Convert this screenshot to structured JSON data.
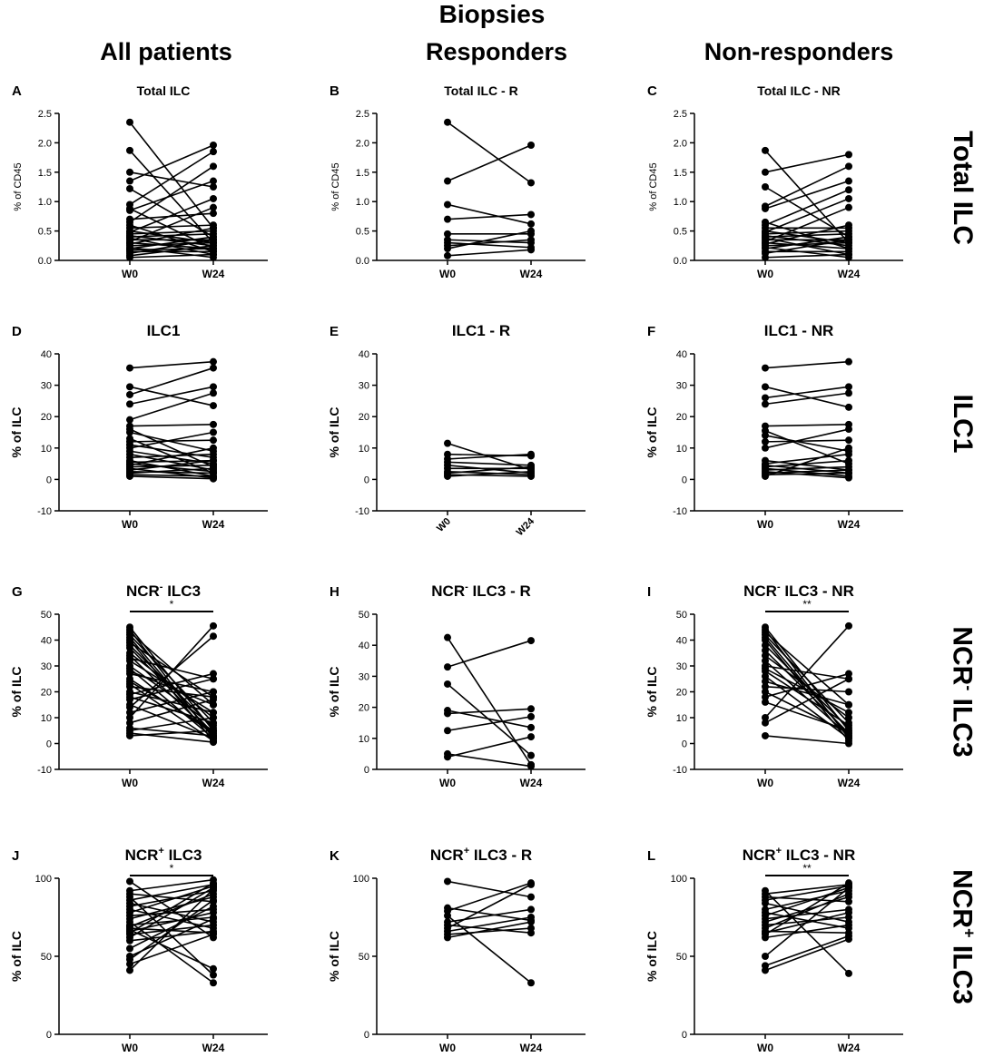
{
  "figure": {
    "title": "Biopsies",
    "columns": [
      "All patients",
      "Responders",
      "Non-responders"
    ],
    "rows": [
      {
        "main": "Total ILC",
        "sup": ""
      },
      {
        "main": "ILC1",
        "sup": ""
      },
      {
        "main": "NCR",
        "sup": "-",
        "suffix": " ILC3"
      },
      {
        "main": "NCR",
        "sup": "+",
        "suffix": " ILC3"
      }
    ]
  },
  "chart_data": [
    {
      "letter": "A",
      "type": "line",
      "title": "Total ILC",
      "ylabel": "% of CD45",
      "categories": [
        "W0",
        "W24"
      ],
      "ylim": [
        0,
        2.5
      ],
      "yticks": [
        "0.0",
        "0.5",
        "1.0",
        "1.5",
        "2.0",
        "2.5"
      ],
      "tickvals": [
        0,
        0.5,
        1,
        1.5,
        2,
        2.5
      ],
      "rotate_x": false,
      "sig": "",
      "pairs": [
        [
          2.35,
          0.55
        ],
        [
          1.87,
          0.3
        ],
        [
          1.5,
          1.25
        ],
        [
          1.35,
          1.96
        ],
        [
          1.22,
          0.4
        ],
        [
          0.95,
          1.85
        ],
        [
          0.88,
          0.2
        ],
        [
          0.85,
          1.35
        ],
        [
          0.7,
          0.8
        ],
        [
          0.65,
          1.6
        ],
        [
          0.6,
          0.15
        ],
        [
          0.55,
          0.6
        ],
        [
          0.5,
          0.3
        ],
        [
          0.48,
          1.05
        ],
        [
          0.45,
          0.5
        ],
        [
          0.42,
          0.25
        ],
        [
          0.4,
          0.45
        ],
        [
          0.38,
          0.1
        ],
        [
          0.35,
          0.35
        ],
        [
          0.32,
          0.9
        ],
        [
          0.3,
          0.2
        ],
        [
          0.28,
          0.55
        ],
        [
          0.25,
          0.3
        ],
        [
          0.22,
          0.05
        ],
        [
          0.2,
          0.4
        ],
        [
          0.18,
          0.2
        ],
        [
          0.15,
          0.15
        ],
        [
          0.12,
          0.35
        ],
        [
          0.08,
          0.25
        ],
        [
          0.05,
          0.1
        ]
      ]
    },
    {
      "letter": "B",
      "type": "line",
      "title": "Total ILC - R",
      "ylabel": "% of CD45",
      "categories": [
        "W0",
        "W24"
      ],
      "ylim": [
        0,
        2.5
      ],
      "yticks": [
        "0.0",
        "0.5",
        "1.0",
        "1.5",
        "2.0",
        "2.5"
      ],
      "tickvals": [
        0,
        0.5,
        1,
        1.5,
        2,
        2.5
      ],
      "rotate_x": false,
      "sig": "",
      "pairs": [
        [
          2.35,
          1.32
        ],
        [
          1.35,
          1.96
        ],
        [
          0.95,
          0.62
        ],
        [
          0.7,
          0.78
        ],
        [
          0.45,
          0.45
        ],
        [
          0.35,
          0.3
        ],
        [
          0.3,
          0.22
        ],
        [
          0.25,
          0.35
        ],
        [
          0.2,
          0.5
        ],
        [
          0.08,
          0.18
        ]
      ]
    },
    {
      "letter": "C",
      "type": "line",
      "title": "Total ILC - NR",
      "ylabel": "% of CD45",
      "categories": [
        "W0",
        "W24"
      ],
      "ylim": [
        0,
        2.5
      ],
      "yticks": [
        "0.0",
        "0.5",
        "1.0",
        "1.5",
        "2.0",
        "2.5"
      ],
      "tickvals": [
        0,
        0.5,
        1,
        1.5,
        2,
        2.5
      ],
      "rotate_x": false,
      "sig": "",
      "pairs": [
        [
          1.87,
          0.3
        ],
        [
          1.5,
          1.8
        ],
        [
          1.25,
          0.4
        ],
        [
          0.92,
          1.6
        ],
        [
          0.88,
          1.35
        ],
        [
          0.65,
          0.2
        ],
        [
          0.6,
          1.2
        ],
        [
          0.55,
          0.55
        ],
        [
          0.5,
          0.3
        ],
        [
          0.48,
          1.05
        ],
        [
          0.45,
          0.5
        ],
        [
          0.42,
          0.25
        ],
        [
          0.4,
          0.45
        ],
        [
          0.38,
          0.1
        ],
        [
          0.35,
          0.35
        ],
        [
          0.32,
          0.9
        ],
        [
          0.3,
          0.2
        ],
        [
          0.28,
          0.6
        ],
        [
          0.25,
          0.3
        ],
        [
          0.22,
          0.05
        ],
        [
          0.2,
          0.4
        ],
        [
          0.15,
          0.15
        ],
        [
          0.12,
          0.35
        ],
        [
          0.05,
          0.1
        ]
      ]
    },
    {
      "letter": "D",
      "type": "line",
      "title": "ILC1",
      "ylabel": "% of ILC",
      "categories": [
        "W0",
        "W24"
      ],
      "ylim": [
        -10,
        40
      ],
      "yticks": [
        "-10",
        "0",
        "10",
        "20",
        "30",
        "40"
      ],
      "tickvals": [
        -10,
        0,
        10,
        20,
        30,
        40
      ],
      "rotate_x": false,
      "sig": "",
      "pairs": [
        [
          35.5,
          37.5
        ],
        [
          29.5,
          23.5
        ],
        [
          27,
          35.5
        ],
        [
          24,
          29.5
        ],
        [
          19,
          27.5
        ],
        [
          17,
          17.5
        ],
        [
          16,
          4
        ],
        [
          15,
          9
        ],
        [
          13,
          2
        ],
        [
          12,
          12.5
        ],
        [
          11,
          7
        ],
        [
          10,
          15
        ],
        [
          9,
          5
        ],
        [
          8,
          3
        ],
        [
          7,
          8
        ],
        [
          6,
          1
        ],
        [
          5.5,
          6
        ],
        [
          5,
          2.5
        ],
        [
          4.5,
          10
        ],
        [
          4,
          4.5
        ],
        [
          3.5,
          0.5
        ],
        [
          3,
          6
        ],
        [
          2.5,
          2
        ],
        [
          2,
          3.5
        ],
        [
          1.5,
          1
        ],
        [
          1,
          0.2
        ]
      ]
    },
    {
      "letter": "E",
      "type": "line",
      "title": "ILC1 - R",
      "ylabel": "% of ILC",
      "categories": [
        "W0",
        "W24"
      ],
      "ylim": [
        -10,
        40
      ],
      "yticks": [
        "-10",
        "0",
        "10",
        "20",
        "30",
        "40"
      ],
      "tickvals": [
        -10,
        0,
        10,
        20,
        30,
        40
      ],
      "rotate_x": true,
      "sig": "",
      "pairs": [
        [
          11.5,
          3
        ],
        [
          8,
          7.5
        ],
        [
          6.5,
          8
        ],
        [
          5.5,
          4.5
        ],
        [
          4.5,
          2
        ],
        [
          3.5,
          3.5
        ],
        [
          2.5,
          1.5
        ],
        [
          2,
          4
        ],
        [
          1.5,
          1
        ],
        [
          1,
          2.5
        ]
      ]
    },
    {
      "letter": "F",
      "type": "line",
      "title": "ILC1 - NR",
      "ylabel": "% of ILC",
      "categories": [
        "W0",
        "W24"
      ],
      "ylim": [
        -10,
        40
      ],
      "yticks": [
        "-10",
        "0",
        "10",
        "20",
        "30",
        "40"
      ],
      "tickvals": [
        -10,
        0,
        10,
        20,
        30,
        40
      ],
      "rotate_x": false,
      "sig": "",
      "pairs": [
        [
          35.5,
          37.5
        ],
        [
          29.5,
          23
        ],
        [
          26,
          29.5
        ],
        [
          24,
          27.5
        ],
        [
          17,
          17.5
        ],
        [
          15.5,
          5
        ],
        [
          14,
          9
        ],
        [
          12,
          12.5
        ],
        [
          10,
          16
        ],
        [
          6,
          3
        ],
        [
          5,
          8
        ],
        [
          4.5,
          2
        ],
        [
          4,
          6
        ],
        [
          3.5,
          1
        ],
        [
          3,
          4
        ],
        [
          2.5,
          0.5
        ],
        [
          2,
          3
        ],
        [
          1.5,
          2
        ],
        [
          1,
          10
        ]
      ]
    },
    {
      "letter": "G",
      "type": "line",
      "title": "NCR",
      "title_sup": "-",
      "title_suffix": " ILC3",
      "ylabel": "% of ILC",
      "categories": [
        "W0",
        "W24"
      ],
      "ylim": [
        -10,
        50
      ],
      "yticks": [
        "-10",
        "0",
        "10",
        "20",
        "30",
        "40",
        "50"
      ],
      "tickvals": [
        -10,
        0,
        10,
        20,
        30,
        40,
        50
      ],
      "rotate_x": false,
      "sig": "*",
      "pairs": [
        [
          45,
          5
        ],
        [
          44,
          2
        ],
        [
          43,
          15
        ],
        [
          42,
          8
        ],
        [
          41,
          3
        ],
        [
          40,
          1
        ],
        [
          39,
          18
        ],
        [
          38,
          6
        ],
        [
          37,
          4
        ],
        [
          35,
          10
        ],
        [
          34,
          3
        ],
        [
          33,
          25
        ],
        [
          32,
          12
        ],
        [
          30,
          7
        ],
        [
          29,
          2
        ],
        [
          28,
          15
        ],
        [
          27,
          20
        ],
        [
          25,
          4
        ],
        [
          24,
          5
        ],
        [
          23,
          1
        ],
        [
          22,
          18
        ],
        [
          20,
          12
        ],
        [
          19,
          27
        ],
        [
          18,
          8
        ],
        [
          17,
          25
        ],
        [
          15,
          2
        ],
        [
          14,
          41.5
        ],
        [
          12,
          20
        ],
        [
          10,
          45.5
        ],
        [
          8,
          17
        ],
        [
          6,
          3
        ],
        [
          5,
          10
        ],
        [
          4,
          0.5
        ],
        [
          3,
          5
        ]
      ]
    },
    {
      "letter": "H",
      "type": "line",
      "title": "NCR",
      "title_sup": "-",
      "title_suffix": " ILC3 - R",
      "ylabel": "% of ILC",
      "categories": [
        "W0",
        "W24"
      ],
      "ylim": [
        0,
        50
      ],
      "yticks": [
        "0",
        "10",
        "20",
        "30",
        "40",
        "50"
      ],
      "tickvals": [
        0,
        10,
        20,
        30,
        40,
        50
      ],
      "rotate_x": false,
      "sig": "",
      "pairs": [
        [
          42.5,
          1.5
        ],
        [
          33,
          41.5
        ],
        [
          27.5,
          4.5
        ],
        [
          19,
          13.5
        ],
        [
          18,
          19.5
        ],
        [
          12.5,
          17
        ],
        [
          5,
          1
        ],
        [
          4,
          10.5
        ]
      ]
    },
    {
      "letter": "I",
      "type": "line",
      "title": "NCR",
      "title_sup": "-",
      "title_suffix": " ILC3 - NR",
      "ylabel": "% of ILC",
      "categories": [
        "W0",
        "W24"
      ],
      "ylim": [
        -10,
        50
      ],
      "yticks": [
        "-10",
        "0",
        "10",
        "20",
        "30",
        "40",
        "50"
      ],
      "tickvals": [
        -10,
        0,
        10,
        20,
        30,
        40,
        50
      ],
      "rotate_x": false,
      "sig": "**",
      "pairs": [
        [
          45,
          5
        ],
        [
          44,
          2
        ],
        [
          43,
          15
        ],
        [
          42,
          8
        ],
        [
          41,
          3
        ],
        [
          40,
          1
        ],
        [
          38,
          6
        ],
        [
          36,
          4
        ],
        [
          34,
          10
        ],
        [
          32,
          3
        ],
        [
          30,
          25
        ],
        [
          29,
          12
        ],
        [
          28,
          7
        ],
        [
          26,
          2
        ],
        [
          24,
          15
        ],
        [
          22,
          20
        ],
        [
          20,
          4
        ],
        [
          18,
          27
        ],
        [
          16,
          5
        ],
        [
          10,
          45.5
        ],
        [
          8,
          25
        ],
        [
          3,
          0
        ]
      ]
    },
    {
      "letter": "J",
      "type": "line",
      "title": "NCR",
      "title_sup": "+",
      "title_suffix": " ILC3",
      "ylabel": "% of ILC",
      "categories": [
        "W0",
        "W24"
      ],
      "ylim": [
        0,
        100
      ],
      "yticks": [
        "0",
        "50",
        "100"
      ],
      "tickvals": [
        0,
        50,
        100
      ],
      "rotate_x": false,
      "sig": "*",
      "pairs": [
        [
          98,
          62
        ],
        [
          92,
          99
        ],
        [
          90,
          85
        ],
        [
          88,
          38
        ],
        [
          86,
          96
        ],
        [
          84,
          72
        ],
        [
          82,
          92
        ],
        [
          80,
          68
        ],
        [
          78,
          95
        ],
        [
          76,
          80
        ],
        [
          74,
          88
        ],
        [
          72,
          33
        ],
        [
          70,
          75
        ],
        [
          69,
          90
        ],
        [
          68,
          65
        ],
        [
          67,
          42
        ],
        [
          66,
          78
        ],
        [
          65,
          97
        ],
        [
          64,
          70
        ],
        [
          62,
          94
        ],
        [
          60,
          66
        ],
        [
          55,
          82
        ],
        [
          50,
          74
        ],
        [
          48,
          86
        ],
        [
          45,
          64
        ],
        [
          41,
          93
        ]
      ]
    },
    {
      "letter": "K",
      "type": "line",
      "title": "NCR",
      "title_sup": "+",
      "title_suffix": " ILC3 - R",
      "ylabel": "% of ILC",
      "categories": [
        "W0",
        "W24"
      ],
      "ylim": [
        0,
        100
      ],
      "yticks": [
        "0",
        "50",
        "100"
      ],
      "tickvals": [
        0,
        50,
        100
      ],
      "rotate_x": false,
      "sig": "",
      "pairs": [
        [
          98,
          88
        ],
        [
          81,
          73
        ],
        [
          79,
          97
        ],
        [
          76,
          33
        ],
        [
          72,
          80
        ],
        [
          70,
          65
        ],
        [
          68,
          96
        ],
        [
          66,
          75
        ],
        [
          64,
          68
        ],
        [
          62,
          72
        ]
      ]
    },
    {
      "letter": "L",
      "type": "line",
      "title": "NCR",
      "title_sup": "+",
      "title_suffix": " ILC3 - NR",
      "ylabel": "% of ILC",
      "categories": [
        "W0",
        "W24"
      ],
      "ylim": [
        0,
        100
      ],
      "yticks": [
        "0",
        "50",
        "100"
      ],
      "tickvals": [
        0,
        50,
        100
      ],
      "rotate_x": false,
      "sig": "**",
      "pairs": [
        [
          92,
          39
        ],
        [
          90,
          96
        ],
        [
          88,
          85
        ],
        [
          86,
          95
        ],
        [
          84,
          72
        ],
        [
          80,
          92
        ],
        [
          78,
          68
        ],
        [
          76,
          94
        ],
        [
          74,
          80
        ],
        [
          72,
          88
        ],
        [
          70,
          75
        ],
        [
          68,
          90
        ],
        [
          66,
          65
        ],
        [
          65,
          78
        ],
        [
          64,
          97
        ],
        [
          62,
          70
        ],
        [
          50,
          94
        ],
        [
          44,
          63
        ],
        [
          41,
          61
        ]
      ]
    }
  ]
}
